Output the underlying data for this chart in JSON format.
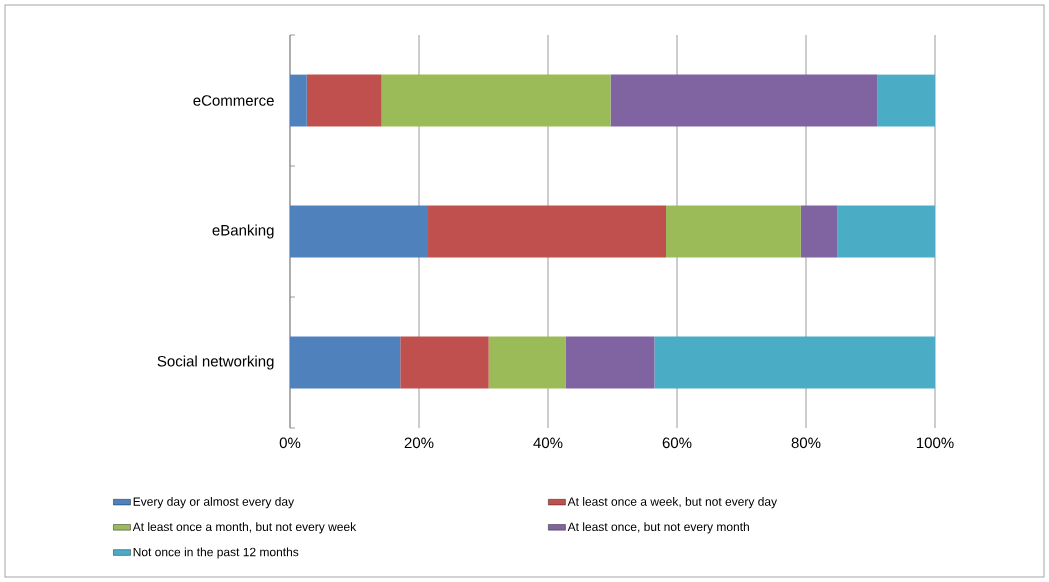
{
  "chart_data": {
    "type": "bar",
    "orientation": "horizontal",
    "stacked": true,
    "categories": [
      "eCommerce",
      "eBanking",
      "Social networking"
    ],
    "series": [
      {
        "name": "Every day or almost every day",
        "color": "#4f81bd",
        "values": [
          2.6,
          21.4,
          17.1
        ]
      },
      {
        "name": "At least once a week, but not every day",
        "color": "#c0504d",
        "values": [
          11.6,
          36.9,
          13.7
        ]
      },
      {
        "name": "At least once a month, but not every week",
        "color": "#9bbb59",
        "values": [
          35.5,
          20.9,
          11.9
        ]
      },
      {
        "name": "At least once, but not every month",
        "color": "#8064a2",
        "values": [
          41.4,
          5.7,
          13.8
        ]
      },
      {
        "name": "Not once in the past 12 months",
        "color": "#4bacc6",
        "values": [
          8.9,
          15.1,
          43.5
        ]
      }
    ],
    "xlim": [
      0,
      100
    ],
    "xticks": [
      {
        "value": 0,
        "label": "0%"
      },
      {
        "value": 20,
        "label": "20%"
      },
      {
        "value": 40,
        "label": "40%"
      },
      {
        "value": 60,
        "label": "60%"
      },
      {
        "value": 80,
        "label": "80%"
      },
      {
        "value": 100,
        "label": "100%"
      }
    ],
    "grid": "x",
    "legend": "bottom"
  }
}
